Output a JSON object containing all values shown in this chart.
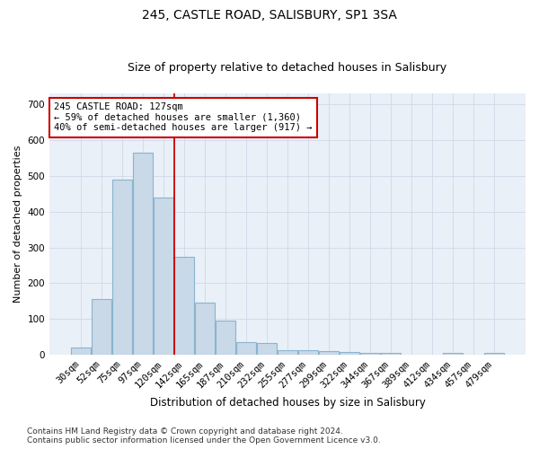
{
  "title": "245, CASTLE ROAD, SALISBURY, SP1 3SA",
  "subtitle": "Size of property relative to detached houses in Salisbury",
  "xlabel": "Distribution of detached houses by size in Salisbury",
  "ylabel": "Number of detached properties",
  "categories": [
    "30sqm",
    "52sqm",
    "75sqm",
    "97sqm",
    "120sqm",
    "142sqm",
    "165sqm",
    "187sqm",
    "210sqm",
    "232sqm",
    "255sqm",
    "277sqm",
    "299sqm",
    "322sqm",
    "344sqm",
    "367sqm",
    "389sqm",
    "412sqm",
    "434sqm",
    "457sqm",
    "479sqm"
  ],
  "values": [
    20,
    155,
    490,
    565,
    440,
    275,
    145,
    97,
    35,
    33,
    13,
    13,
    10,
    8,
    5,
    5,
    0,
    0,
    5,
    0,
    5
  ],
  "bar_color": "#c9d9e8",
  "bar_edgecolor": "#8ab4ce",
  "bar_linewidth": 0.8,
  "grid_color": "#d0d8e8",
  "bg_color": "#eaf0f8",
  "redline_x": 4.5,
  "annotation_text": "245 CASTLE ROAD: 127sqm\n← 59% of detached houses are smaller (1,360)\n40% of semi-detached houses are larger (917) →",
  "annotation_box_edgecolor": "#cc0000",
  "annotation_box_facecolor": "white",
  "ylim": [
    0,
    730
  ],
  "yticks": [
    0,
    100,
    200,
    300,
    400,
    500,
    600,
    700
  ],
  "footer": "Contains HM Land Registry data © Crown copyright and database right 2024.\nContains public sector information licensed under the Open Government Licence v3.0.",
  "title_fontsize": 10,
  "subtitle_fontsize": 9,
  "xlabel_fontsize": 8.5,
  "ylabel_fontsize": 8,
  "tick_fontsize": 7.5,
  "annot_fontsize": 7.5,
  "footer_fontsize": 6.5
}
